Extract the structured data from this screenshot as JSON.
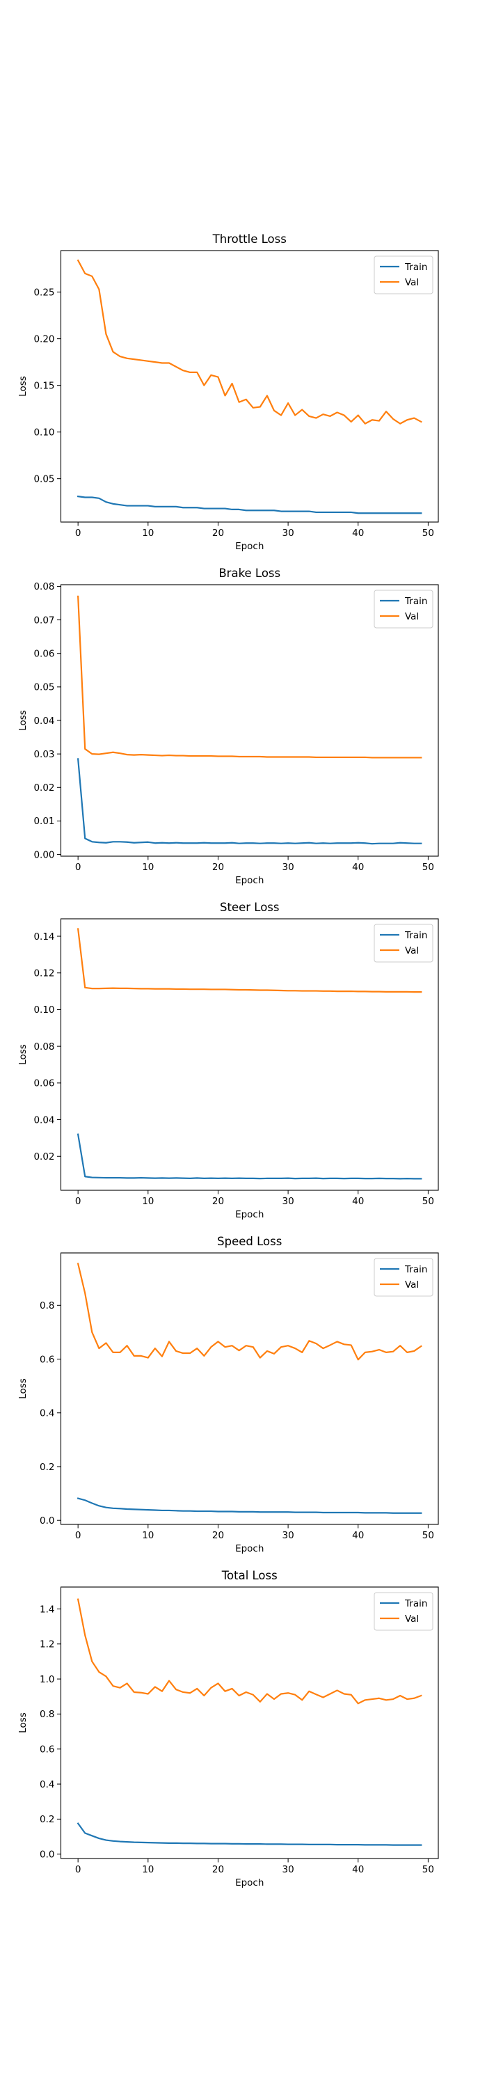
{
  "colors": {
    "train": "#1f77b4",
    "val": "#ff7f0e"
  },
  "chart_data": [
    {
      "type": "line",
      "title": "Throttle Loss",
      "xlabel": "Epoch",
      "ylabel": "Loss",
      "xlim": [
        -2.45,
        51.45
      ],
      "ylim": [
        0.0035,
        0.2945
      ],
      "xticks": [
        0,
        10,
        20,
        30,
        40,
        50
      ],
      "yticks": [
        0.05,
        0.1,
        0.15,
        0.2,
        0.25
      ],
      "ytick_labels": [
        "0.05",
        "0.10",
        "0.15",
        "0.20",
        "0.25"
      ],
      "legend": {
        "placement": "upper right",
        "entries": [
          "Train",
          "Val"
        ]
      },
      "grid": false,
      "series": [
        {
          "name": "Train",
          "color": "#1f77b4",
          "values": [
            0.031,
            0.03,
            0.03,
            0.029,
            0.025,
            0.023,
            0.022,
            0.021,
            0.021,
            0.021,
            0.021,
            0.02,
            0.02,
            0.02,
            0.02,
            0.019,
            0.019,
            0.019,
            0.018,
            0.018,
            0.018,
            0.018,
            0.017,
            0.017,
            0.016,
            0.016,
            0.016,
            0.016,
            0.016,
            0.015,
            0.015,
            0.015,
            0.015,
            0.015,
            0.014,
            0.014,
            0.014,
            0.014,
            0.014,
            0.014,
            0.013,
            0.013,
            0.013,
            0.013,
            0.013,
            0.013,
            0.013,
            0.013,
            0.013,
            0.013
          ]
        },
        {
          "name": "Val",
          "color": "#ff7f0e",
          "values": [
            0.284,
            0.27,
            0.267,
            0.253,
            0.205,
            0.186,
            0.181,
            0.179,
            0.178,
            0.177,
            0.176,
            0.175,
            0.174,
            0.174,
            0.17,
            0.166,
            0.164,
            0.164,
            0.15,
            0.161,
            0.159,
            0.139,
            0.152,
            0.132,
            0.135,
            0.126,
            0.127,
            0.139,
            0.123,
            0.118,
            0.131,
            0.118,
            0.124,
            0.117,
            0.115,
            0.119,
            0.117,
            0.121,
            0.118,
            0.111,
            0.118,
            0.109,
            0.113,
            0.112,
            0.122,
            0.114,
            0.109,
            0.113,
            0.115,
            0.111
          ]
        }
      ]
    },
    {
      "type": "line",
      "title": "Brake Loss",
      "xlabel": "Epoch",
      "ylabel": "Loss",
      "xlim": [
        -2.45,
        51.45
      ],
      "ylim": [
        -0.0005,
        0.0805
      ],
      "xticks": [
        0,
        10,
        20,
        30,
        40,
        50
      ],
      "yticks": [
        0.0,
        0.01,
        0.02,
        0.03,
        0.04,
        0.05,
        0.06,
        0.07,
        0.08
      ],
      "ytick_labels": [
        "0.00",
        "0.01",
        "0.02",
        "0.03",
        "0.04",
        "0.05",
        "0.06",
        "0.07",
        "0.08"
      ],
      "legend": {
        "placement": "upper right",
        "entries": [
          "Train",
          "Val"
        ]
      },
      "grid": false,
      "series": [
        {
          "name": "Train",
          "color": "#1f77b4",
          "values": [
            0.0285,
            0.0048,
            0.0038,
            0.0036,
            0.0035,
            0.0038,
            0.0038,
            0.0037,
            0.0035,
            0.0036,
            0.0037,
            0.0034,
            0.0035,
            0.0034,
            0.0035,
            0.0034,
            0.0034,
            0.0034,
            0.0035,
            0.0034,
            0.0034,
            0.0034,
            0.0035,
            0.0033,
            0.0034,
            0.0034,
            0.0033,
            0.0034,
            0.0034,
            0.0033,
            0.0034,
            0.0033,
            0.0034,
            0.0035,
            0.0033,
            0.0034,
            0.0033,
            0.0034,
            0.0034,
            0.0034,
            0.0035,
            0.0034,
            0.0032,
            0.0033,
            0.0033,
            0.0033,
            0.0035,
            0.0034,
            0.0033,
            0.0033
          ]
        },
        {
          "name": "Val",
          "color": "#ff7f0e",
          "values": [
            0.077,
            0.0315,
            0.03,
            0.0299,
            0.0302,
            0.0305,
            0.0302,
            0.0298,
            0.0297,
            0.0298,
            0.0297,
            0.0296,
            0.0295,
            0.0296,
            0.0295,
            0.0295,
            0.0294,
            0.0294,
            0.0294,
            0.0294,
            0.0293,
            0.0293,
            0.0293,
            0.0292,
            0.0292,
            0.0292,
            0.0292,
            0.0291,
            0.0291,
            0.0291,
            0.0291,
            0.0291,
            0.0291,
            0.0291,
            0.029,
            0.029,
            0.029,
            0.029,
            0.029,
            0.029,
            0.029,
            0.029,
            0.0289,
            0.0289,
            0.0289,
            0.0289,
            0.0289,
            0.0289,
            0.0289,
            0.0289
          ]
        }
      ]
    },
    {
      "type": "line",
      "title": "Steer Loss",
      "xlabel": "Epoch",
      "ylabel": "Loss",
      "xlim": [
        -2.45,
        51.45
      ],
      "ylim": [
        0.0015,
        0.1495
      ],
      "xticks": [
        0,
        10,
        20,
        30,
        40,
        50
      ],
      "yticks": [
        0.02,
        0.04,
        0.06,
        0.08,
        0.1,
        0.12,
        0.14
      ],
      "ytick_labels": [
        "0.02",
        "0.04",
        "0.06",
        "0.08",
        "0.10",
        "0.12",
        "0.14"
      ],
      "legend": {
        "placement": "upper right",
        "entries": [
          "Train",
          "Val"
        ]
      },
      "grid": false,
      "series": [
        {
          "name": "Train",
          "color": "#1f77b4",
          "values": [
            0.032,
            0.009,
            0.0085,
            0.0084,
            0.0083,
            0.0083,
            0.0083,
            0.0082,
            0.0082,
            0.0083,
            0.0082,
            0.0081,
            0.0082,
            0.0081,
            0.0082,
            0.0081,
            0.008,
            0.0082,
            0.008,
            0.0081,
            0.008,
            0.0081,
            0.008,
            0.0081,
            0.008,
            0.008,
            0.0079,
            0.008,
            0.008,
            0.008,
            0.0081,
            0.0079,
            0.008,
            0.008,
            0.0081,
            0.0079,
            0.008,
            0.008,
            0.0079,
            0.008,
            0.008,
            0.0079,
            0.0079,
            0.008,
            0.0079,
            0.0079,
            0.0078,
            0.0079,
            0.0078,
            0.0078
          ]
        },
        {
          "name": "Val",
          "color": "#ff7f0e",
          "values": [
            0.144,
            0.112,
            0.1115,
            0.1115,
            0.1116,
            0.1117,
            0.1116,
            0.1116,
            0.1115,
            0.1114,
            0.1114,
            0.1113,
            0.1113,
            0.1113,
            0.1112,
            0.1112,
            0.1111,
            0.1111,
            0.1111,
            0.111,
            0.111,
            0.111,
            0.1109,
            0.1108,
            0.1108,
            0.1107,
            0.1106,
            0.1106,
            0.1105,
            0.1104,
            0.1103,
            0.1103,
            0.1102,
            0.1102,
            0.1102,
            0.1101,
            0.1101,
            0.11,
            0.11,
            0.11,
            0.1099,
            0.1099,
            0.1098,
            0.1098,
            0.1097,
            0.1097,
            0.1097,
            0.1097,
            0.1096,
            0.1096
          ]
        }
      ]
    },
    {
      "type": "line",
      "title": "Speed Loss",
      "xlabel": "Epoch",
      "ylabel": "Loss",
      "xlim": [
        -2.45,
        51.45
      ],
      "ylim": [
        -0.015,
        0.995
      ],
      "xticks": [
        0,
        10,
        20,
        30,
        40,
        50
      ],
      "yticks": [
        0.0,
        0.2,
        0.4,
        0.6,
        0.8
      ],
      "ytick_labels": [
        "0.0",
        "0.2",
        "0.4",
        "0.6",
        "0.8"
      ],
      "legend": {
        "placement": "upper right",
        "entries": [
          "Train",
          "Val"
        ]
      },
      "grid": false,
      "series": [
        {
          "name": "Train",
          "color": "#1f77b4",
          "values": [
            0.082,
            0.075,
            0.064,
            0.054,
            0.048,
            0.045,
            0.044,
            0.042,
            0.041,
            0.04,
            0.039,
            0.038,
            0.037,
            0.037,
            0.036,
            0.035,
            0.035,
            0.034,
            0.034,
            0.034,
            0.033,
            0.033,
            0.033,
            0.032,
            0.032,
            0.032,
            0.031,
            0.031,
            0.031,
            0.031,
            0.031,
            0.03,
            0.03,
            0.03,
            0.03,
            0.029,
            0.029,
            0.029,
            0.029,
            0.029,
            0.029,
            0.028,
            0.028,
            0.028,
            0.028,
            0.027,
            0.027,
            0.027,
            0.027,
            0.027
          ]
        },
        {
          "name": "Val",
          "color": "#ff7f0e",
          "values": [
            0.955,
            0.845,
            0.7,
            0.64,
            0.66,
            0.625,
            0.625,
            0.65,
            0.612,
            0.612,
            0.605,
            0.64,
            0.61,
            0.665,
            0.63,
            0.622,
            0.622,
            0.64,
            0.612,
            0.645,
            0.665,
            0.645,
            0.65,
            0.632,
            0.65,
            0.645,
            0.605,
            0.63,
            0.62,
            0.645,
            0.65,
            0.64,
            0.625,
            0.668,
            0.658,
            0.64,
            0.652,
            0.665,
            0.655,
            0.652,
            0.598,
            0.625,
            0.628,
            0.635,
            0.625,
            0.628,
            0.65,
            0.625,
            0.63,
            0.648
          ]
        }
      ]
    },
    {
      "type": "line",
      "title": "Total Loss",
      "xlabel": "Epoch",
      "ylabel": "Loss",
      "xlim": [
        -2.45,
        51.45
      ],
      "ylim": [
        -0.025,
        1.525
      ],
      "xticks": [
        0,
        10,
        20,
        30,
        40,
        50
      ],
      "yticks": [
        0.0,
        0.2,
        0.4,
        0.6,
        0.8,
        1.0,
        1.2,
        1.4
      ],
      "ytick_labels": [
        "0.0",
        "0.2",
        "0.4",
        "0.6",
        "0.8",
        "1.0",
        "1.2",
        "1.4"
      ],
      "legend": {
        "placement": "upper right",
        "entries": [
          "Train",
          "Val"
        ]
      },
      "grid": false,
      "series": [
        {
          "name": "Train",
          "color": "#1f77b4",
          "values": [
            0.175,
            0.12,
            0.105,
            0.09,
            0.08,
            0.075,
            0.072,
            0.07,
            0.068,
            0.067,
            0.066,
            0.065,
            0.064,
            0.063,
            0.063,
            0.062,
            0.062,
            0.061,
            0.061,
            0.06,
            0.06,
            0.06,
            0.059,
            0.059,
            0.058,
            0.058,
            0.058,
            0.057,
            0.057,
            0.057,
            0.056,
            0.056,
            0.056,
            0.055,
            0.055,
            0.055,
            0.055,
            0.054,
            0.054,
            0.054,
            0.054,
            0.053,
            0.053,
            0.053,
            0.053,
            0.052,
            0.052,
            0.052,
            0.052,
            0.052
          ]
        },
        {
          "name": "Val",
          "color": "#ff7f0e",
          "values": [
            1.455,
            1.25,
            1.1,
            1.04,
            1.015,
            0.96,
            0.95,
            0.975,
            0.925,
            0.922,
            0.915,
            0.955,
            0.93,
            0.99,
            0.94,
            0.925,
            0.92,
            0.945,
            0.905,
            0.95,
            0.975,
            0.93,
            0.945,
            0.905,
            0.925,
            0.91,
            0.87,
            0.915,
            0.885,
            0.915,
            0.92,
            0.91,
            0.88,
            0.93,
            0.912,
            0.895,
            0.915,
            0.935,
            0.915,
            0.91,
            0.86,
            0.88,
            0.885,
            0.89,
            0.88,
            0.885,
            0.905,
            0.885,
            0.89,
            0.905
          ]
        }
      ]
    }
  ]
}
